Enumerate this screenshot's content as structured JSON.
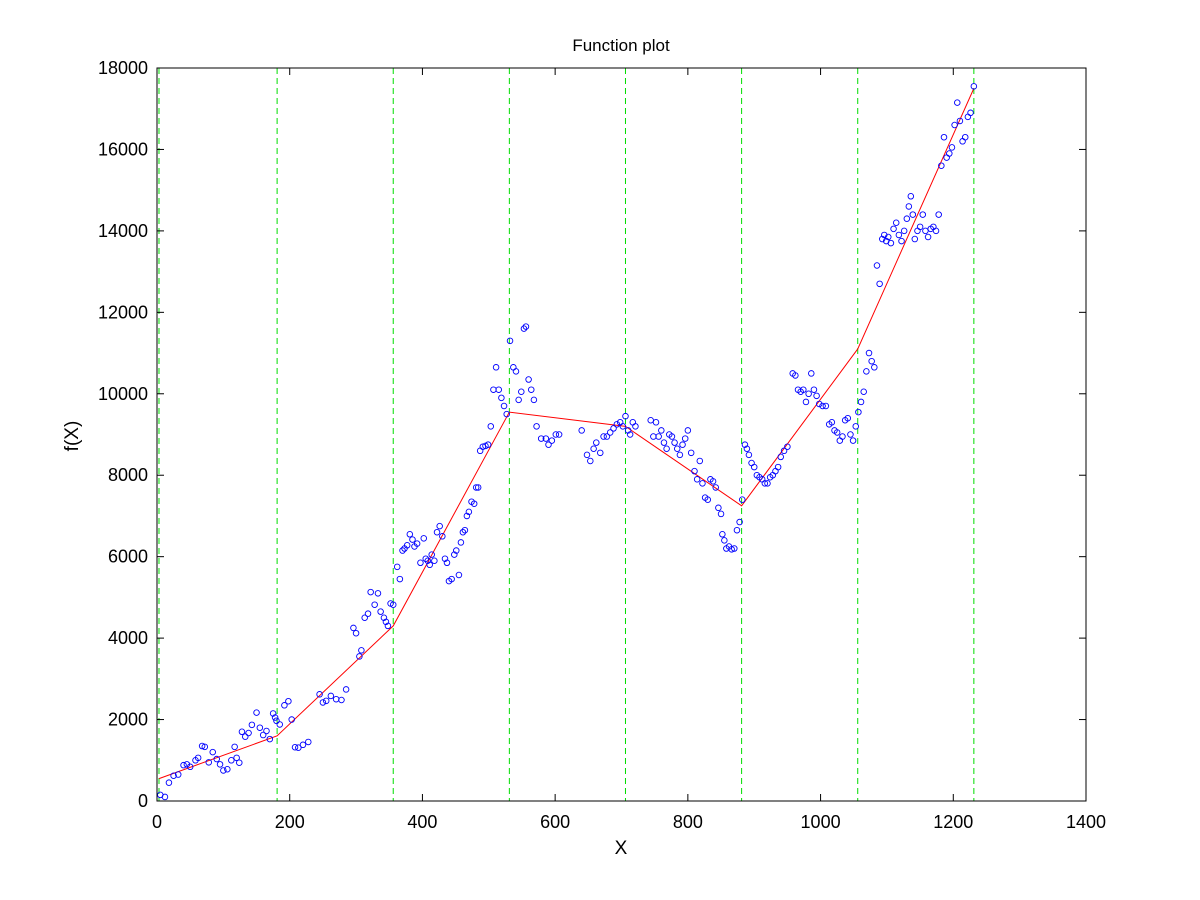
{
  "chart_data": {
    "type": "scatter",
    "title": "Function plot",
    "xlabel": "X",
    "ylabel": "f(X)",
    "xlim": [
      0,
      1400
    ],
    "ylim": [
      0,
      18000
    ],
    "xticks": [
      "0",
      "200",
      "400",
      "600",
      "800",
      "1000",
      "1200",
      "1400"
    ],
    "yticks": [
      "0",
      "2000",
      "4000",
      "6000",
      "8000",
      "10000",
      "12000",
      "14000",
      "16000",
      "18000"
    ],
    "grid": false,
    "legend": "none",
    "colors": {
      "points": "#0000ff",
      "fit_line": "#ff0000",
      "breakpoint_lines": "#00dd00",
      "axes": "#000000"
    },
    "breakpoints_x": [
      3,
      181,
      356,
      531,
      706,
      881,
      1056,
      1231
    ],
    "fit_line": {
      "x": [
        3,
        181,
        356,
        531,
        706,
        881,
        1056,
        1231
      ],
      "y": [
        550,
        1600,
        4300,
        9550,
        9200,
        7250,
        11100,
        17500
      ]
    },
    "points": [
      [
        5,
        150
      ],
      [
        12,
        100
      ],
      [
        18,
        450
      ],
      [
        25,
        620
      ],
      [
        32,
        650
      ],
      [
        40,
        880
      ],
      [
        45,
        900
      ],
      [
        50,
        840
      ],
      [
        58,
        1000
      ],
      [
        62,
        1060
      ],
      [
        68,
        1350
      ],
      [
        72,
        1330
      ],
      [
        78,
        950
      ],
      [
        84,
        1200
      ],
      [
        90,
        1030
      ],
      [
        95,
        900
      ],
      [
        100,
        750
      ],
      [
        106,
        780
      ],
      [
        112,
        1000
      ],
      [
        117,
        1330
      ],
      [
        120,
        1060
      ],
      [
        124,
        940
      ],
      [
        128,
        1700
      ],
      [
        133,
        1580
      ],
      [
        138,
        1670
      ],
      [
        143,
        1870
      ],
      [
        150,
        2170
      ],
      [
        155,
        1800
      ],
      [
        160,
        1620
      ],
      [
        165,
        1720
      ],
      [
        170,
        1520
      ],
      [
        175,
        2150
      ],
      [
        178,
        2050
      ],
      [
        180,
        1970
      ],
      [
        185,
        1880
      ],
      [
        192,
        2350
      ],
      [
        198,
        2450
      ],
      [
        203,
        2000
      ],
      [
        208,
        1320
      ],
      [
        213,
        1310
      ],
      [
        220,
        1380
      ],
      [
        228,
        1450
      ],
      [
        245,
        2620
      ],
      [
        250,
        2420
      ],
      [
        255,
        2460
      ],
      [
        262,
        2580
      ],
      [
        270,
        2500
      ],
      [
        278,
        2480
      ],
      [
        285,
        2740
      ],
      [
        296,
        4250
      ],
      [
        300,
        4120
      ],
      [
        305,
        3550
      ],
      [
        308,
        3700
      ],
      [
        313,
        4500
      ],
      [
        318,
        4600
      ],
      [
        322,
        5130
      ],
      [
        328,
        4820
      ],
      [
        333,
        5100
      ],
      [
        337,
        4650
      ],
      [
        342,
        4500
      ],
      [
        345,
        4400
      ],
      [
        348,
        4300
      ],
      [
        352,
        4850
      ],
      [
        356,
        4820
      ],
      [
        362,
        5750
      ],
      [
        366,
        5450
      ],
      [
        370,
        6150
      ],
      [
        373,
        6200
      ],
      [
        377,
        6280
      ],
      [
        381,
        6550
      ],
      [
        385,
        6420
      ],
      [
        388,
        6250
      ],
      [
        392,
        6320
      ],
      [
        397,
        5850
      ],
      [
        402,
        6450
      ],
      [
        405,
        5950
      ],
      [
        408,
        5900
      ],
      [
        411,
        5800
      ],
      [
        414,
        6050
      ],
      [
        418,
        5900
      ],
      [
        422,
        6600
      ],
      [
        426,
        6750
      ],
      [
        430,
        6500
      ],
      [
        434,
        5950
      ],
      [
        437,
        5850
      ],
      [
        440,
        5400
      ],
      [
        444,
        5450
      ],
      [
        448,
        6050
      ],
      [
        451,
        6150
      ],
      [
        455,
        5550
      ],
      [
        458,
        6350
      ],
      [
        461,
        6600
      ],
      [
        464,
        6650
      ],
      [
        467,
        7000
      ],
      [
        470,
        7100
      ],
      [
        474,
        7350
      ],
      [
        478,
        7300
      ],
      [
        481,
        7700
      ],
      [
        484,
        7700
      ],
      [
        487,
        8600
      ],
      [
        491,
        8700
      ],
      [
        495,
        8720
      ],
      [
        499,
        8750
      ],
      [
        503,
        9200
      ],
      [
        507,
        10100
      ],
      [
        511,
        10650
      ],
      [
        515,
        10100
      ],
      [
        519,
        9900
      ],
      [
        523,
        9700
      ],
      [
        527,
        9500
      ],
      [
        532,
        11300
      ],
      [
        537,
        10650
      ],
      [
        541,
        10550
      ],
      [
        545,
        9850
      ],
      [
        549,
        10050
      ],
      [
        553,
        11600
      ],
      [
        556,
        11650
      ],
      [
        560,
        10350
      ],
      [
        564,
        10100
      ],
      [
        568,
        9850
      ],
      [
        572,
        9200
      ],
      [
        579,
        8900
      ],
      [
        586,
        8900
      ],
      [
        590,
        8750
      ],
      [
        595,
        8850
      ],
      [
        601,
        9000
      ],
      [
        606,
        9000
      ],
      [
        640,
        9100
      ],
      [
        648,
        8500
      ],
      [
        653,
        8350
      ],
      [
        658,
        8650
      ],
      [
        662,
        8800
      ],
      [
        668,
        8550
      ],
      [
        673,
        8950
      ],
      [
        678,
        8950
      ],
      [
        683,
        9050
      ],
      [
        688,
        9150
      ],
      [
        693,
        9250
      ],
      [
        698,
        9300
      ],
      [
        702,
        9200
      ],
      [
        706,
        9450
      ],
      [
        710,
        9100
      ],
      [
        713,
        9000
      ],
      [
        717,
        9300
      ],
      [
        721,
        9200
      ],
      [
        744,
        9350
      ],
      [
        748,
        8950
      ],
      [
        752,
        9300
      ],
      [
        756,
        8950
      ],
      [
        760,
        9100
      ],
      [
        764,
        8800
      ],
      [
        768,
        8650
      ],
      [
        772,
        9000
      ],
      [
        776,
        8950
      ],
      [
        780,
        8800
      ],
      [
        784,
        8650
      ],
      [
        788,
        8500
      ],
      [
        792,
        8750
      ],
      [
        796,
        8900
      ],
      [
        800,
        9100
      ],
      [
        805,
        8550
      ],
      [
        810,
        8100
      ],
      [
        814,
        7900
      ],
      [
        818,
        8350
      ],
      [
        822,
        7800
      ],
      [
        826,
        7450
      ],
      [
        830,
        7400
      ],
      [
        834,
        7900
      ],
      [
        838,
        7850
      ],
      [
        842,
        7700
      ],
      [
        846,
        7200
      ],
      [
        850,
        7050
      ],
      [
        852,
        6550
      ],
      [
        855,
        6400
      ],
      [
        858,
        6200
      ],
      [
        862,
        6250
      ],
      [
        866,
        6180
      ],
      [
        870,
        6200
      ],
      [
        874,
        6650
      ],
      [
        878,
        6850
      ],
      [
        882,
        7400
      ],
      [
        886,
        8750
      ],
      [
        889,
        8650
      ],
      [
        892,
        8500
      ],
      [
        896,
        8300
      ],
      [
        900,
        8200
      ],
      [
        904,
        8000
      ],
      [
        908,
        7950
      ],
      [
        912,
        7900
      ],
      [
        916,
        7800
      ],
      [
        920,
        7800
      ],
      [
        924,
        7950
      ],
      [
        928,
        8000
      ],
      [
        932,
        8100
      ],
      [
        936,
        8200
      ],
      [
        940,
        8450
      ],
      [
        945,
        8600
      ],
      [
        950,
        8700
      ],
      [
        958,
        10500
      ],
      [
        962,
        10450
      ],
      [
        966,
        10100
      ],
      [
        970,
        10050
      ],
      [
        974,
        10100
      ],
      [
        978,
        9800
      ],
      [
        982,
        10000
      ],
      [
        986,
        10500
      ],
      [
        990,
        10100
      ],
      [
        994,
        9950
      ],
      [
        998,
        9750
      ],
      [
        1003,
        9700
      ],
      [
        1008,
        9700
      ],
      [
        1013,
        9250
      ],
      [
        1017,
        9300
      ],
      [
        1021,
        9100
      ],
      [
        1025,
        9050
      ],
      [
        1029,
        8850
      ],
      [
        1033,
        8950
      ],
      [
        1037,
        9350
      ],
      [
        1041,
        9400
      ],
      [
        1045,
        9000
      ],
      [
        1049,
        8850
      ],
      [
        1053,
        9200
      ],
      [
        1057,
        9550
      ],
      [
        1061,
        9800
      ],
      [
        1065,
        10050
      ],
      [
        1069,
        10550
      ],
      [
        1073,
        11000
      ],
      [
        1077,
        10800
      ],
      [
        1081,
        10650
      ],
      [
        1085,
        13150
      ],
      [
        1089,
        12700
      ],
      [
        1093,
        13800
      ],
      [
        1096,
        13900
      ],
      [
        1099,
        13750
      ],
      [
        1102,
        13850
      ],
      [
        1106,
        13700
      ],
      [
        1110,
        14050
      ],
      [
        1114,
        14200
      ],
      [
        1118,
        13900
      ],
      [
        1122,
        13750
      ],
      [
        1126,
        14000
      ],
      [
        1130,
        14300
      ],
      [
        1133,
        14600
      ],
      [
        1136,
        14850
      ],
      [
        1139,
        14400
      ],
      [
        1142,
        13800
      ],
      [
        1146,
        14000
      ],
      [
        1150,
        14100
      ],
      [
        1154,
        14400
      ],
      [
        1158,
        14000
      ],
      [
        1162,
        13850
      ],
      [
        1166,
        14050
      ],
      [
        1170,
        14100
      ],
      [
        1174,
        14000
      ],
      [
        1178,
        14400
      ],
      [
        1182,
        15600
      ],
      [
        1186,
        16300
      ],
      [
        1190,
        15800
      ],
      [
        1194,
        15900
      ],
      [
        1198,
        16050
      ],
      [
        1202,
        16600
      ],
      [
        1206,
        17150
      ],
      [
        1210,
        16700
      ],
      [
        1214,
        16200
      ],
      [
        1218,
        16300
      ],
      [
        1222,
        16800
      ],
      [
        1226,
        16900
      ],
      [
        1231,
        17550
      ]
    ]
  }
}
